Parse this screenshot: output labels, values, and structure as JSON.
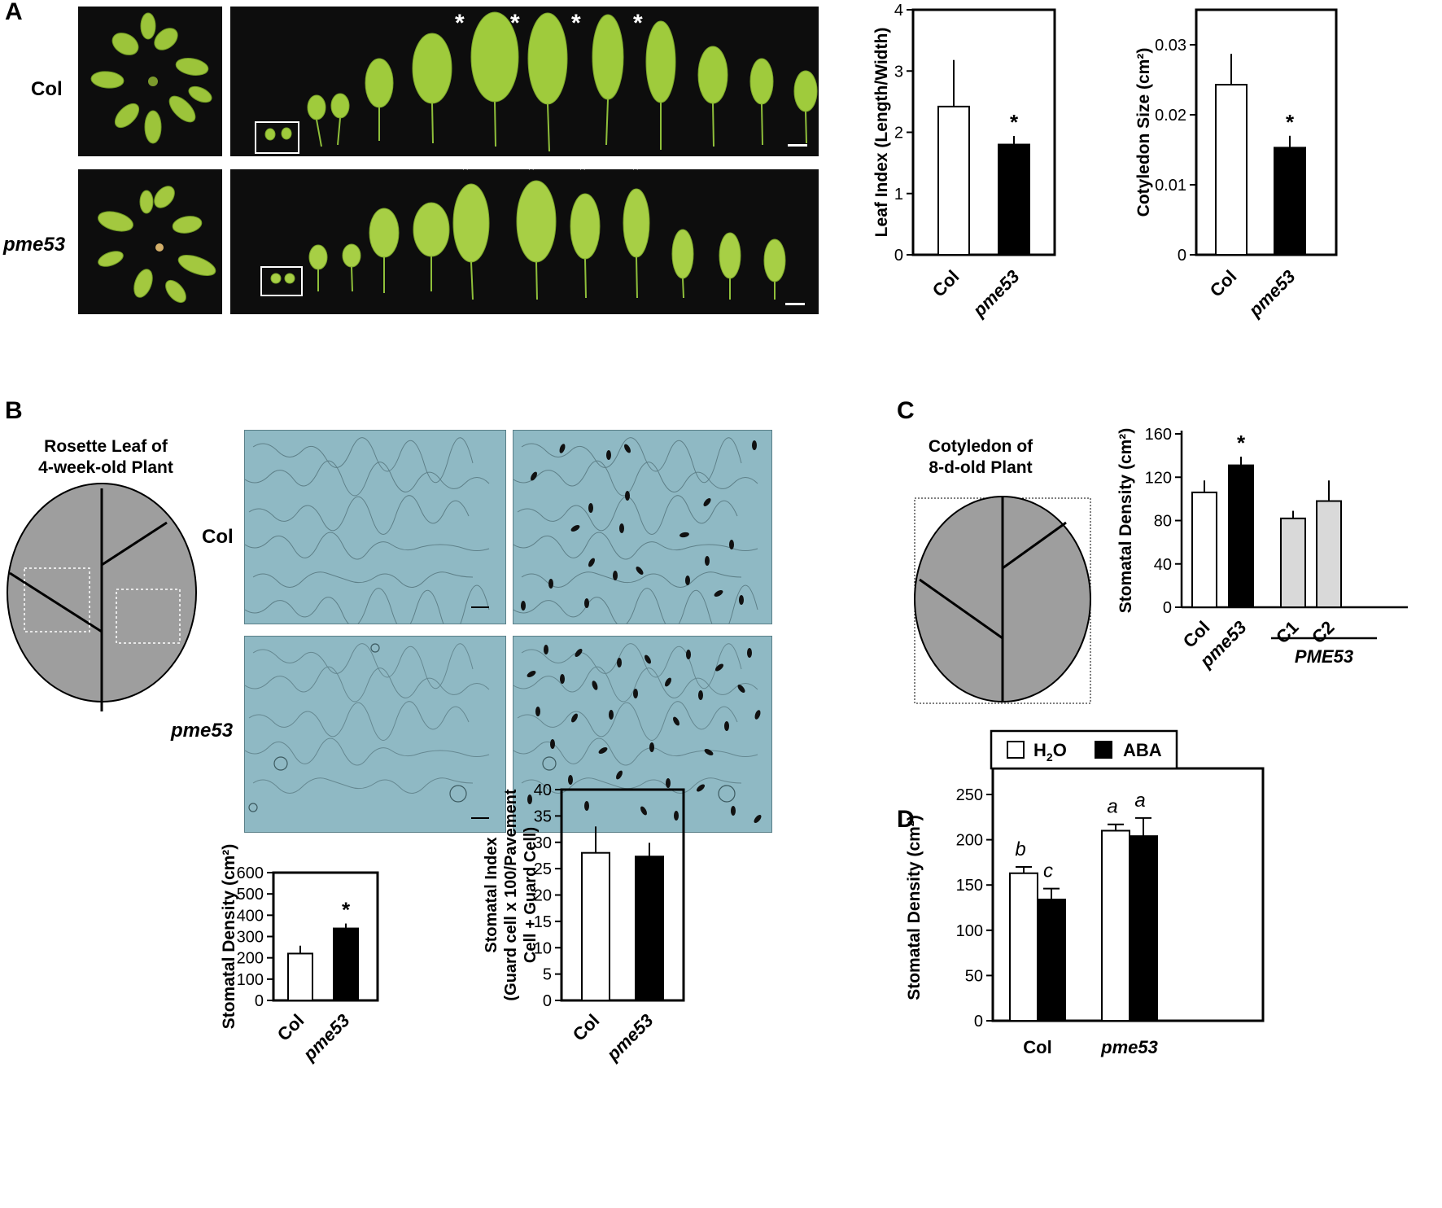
{
  "panel_letters": {
    "a": "A",
    "b": "B",
    "c": "C",
    "d": "D"
  },
  "panelA": {
    "row_labels": [
      "Col",
      "pme53"
    ],
    "asterisk": "*"
  },
  "panelB": {
    "schematic_title_line1": "Rosette Leaf of",
    "schematic_title_line2": "4-week-old Plant",
    "row_labels": [
      "Col",
      "pme53"
    ]
  },
  "panelC": {
    "schematic_title_line1": "Cotyledon of",
    "schematic_title_line2": "8-d-old Plant"
  },
  "chart_data": [
    {
      "id": "A-leaf-index",
      "type": "bar",
      "categories": [
        "Col",
        "pme53"
      ],
      "values": [
        2.42,
        1.8
      ],
      "errors": [
        0.76,
        0.14
      ],
      "bar_fills": [
        "#ffffff",
        "#000000"
      ],
      "significance": [
        "",
        "*"
      ],
      "ylabel": "Leaf Index (Length/Width)",
      "ylim": [
        0,
        4
      ],
      "yticks": [
        "0",
        "1",
        "2",
        "3",
        "4"
      ]
    },
    {
      "id": "A-cotyledon-size",
      "type": "bar",
      "categories": [
        "Col",
        "pme53"
      ],
      "values": [
        0.0243,
        0.0153
      ],
      "errors": [
        0.0044,
        0.0017
      ],
      "bar_fills": [
        "#ffffff",
        "#000000"
      ],
      "significance": [
        "",
        "*"
      ],
      "ylabel": "Cotyledon Size (cm²)",
      "ylim": [
        0,
        0.035
      ],
      "yticks": [
        "0",
        "0.01",
        "0.02",
        "0.03"
      ]
    },
    {
      "id": "B-stomatal-density",
      "type": "bar",
      "categories": [
        "Col",
        "pme53"
      ],
      "values": [
        220,
        338
      ],
      "errors": [
        37,
        23
      ],
      "bar_fills": [
        "#ffffff",
        "#000000"
      ],
      "significance": [
        "",
        "*"
      ],
      "ylabel": "Stomatal Density (cm²)",
      "ylim": [
        0,
        600
      ],
      "yticks": [
        "0",
        "100",
        "200",
        "300",
        "400",
        "500",
        "600"
      ]
    },
    {
      "id": "B-stomatal-index",
      "type": "bar",
      "categories": [
        "Col",
        "pme53"
      ],
      "values": [
        28.0,
        27.3
      ],
      "errors": [
        5.0,
        2.6
      ],
      "bar_fills": [
        "#ffffff",
        "#000000"
      ],
      "significance": [
        "",
        ""
      ],
      "ylabel_lines": [
        "Stomatal Index",
        "(Guard cell x 100/Pavement",
        "Cell + Guard Cell)"
      ],
      "ylim": [
        0,
        40
      ],
      "yticks": [
        "0",
        "5",
        "10",
        "15",
        "20",
        "25",
        "30",
        "35",
        "40"
      ]
    },
    {
      "id": "C-stomatal-density",
      "type": "bar",
      "categories": [
        "Col",
        "pme53",
        "C1",
        "C2"
      ],
      "values": [
        106,
        131,
        82,
        98
      ],
      "errors": [
        11,
        8,
        7,
        19
      ],
      "bar_fills": [
        "#ffffff",
        "#000000",
        "#d9d9d9",
        "#d9d9d9"
      ],
      "significance": [
        "",
        "*",
        "",
        ""
      ],
      "ylabel": "Stomatal Density (cm²)",
      "ylim": [
        0,
        160
      ],
      "yticks": [
        "0",
        "40",
        "80",
        "120",
        "160"
      ],
      "group_label": "PME53"
    },
    {
      "id": "D-stomatal-density",
      "type": "bar",
      "categories": [
        "Col",
        "pme53"
      ],
      "series": [
        {
          "name": "H2O",
          "values": [
            163,
            210
          ],
          "errors": [
            7,
            7
          ],
          "letters": [
            "b",
            "a"
          ],
          "fill": "#ffffff"
        },
        {
          "name": "ABA",
          "values": [
            134,
            204
          ],
          "errors": [
            12,
            20
          ],
          "letters": [
            "c",
            "a"
          ],
          "fill": "#000000"
        }
      ],
      "legend": {
        "h2o_prefix": "H",
        "h2o_sub": "2",
        "h2o_suffix": "O",
        "aba": "ABA"
      },
      "ylabel": "Stomatal Density (cm²)",
      "ylim": [
        0,
        250
      ],
      "yticks": [
        "0",
        "50",
        "100",
        "150",
        "200",
        "250"
      ]
    }
  ]
}
